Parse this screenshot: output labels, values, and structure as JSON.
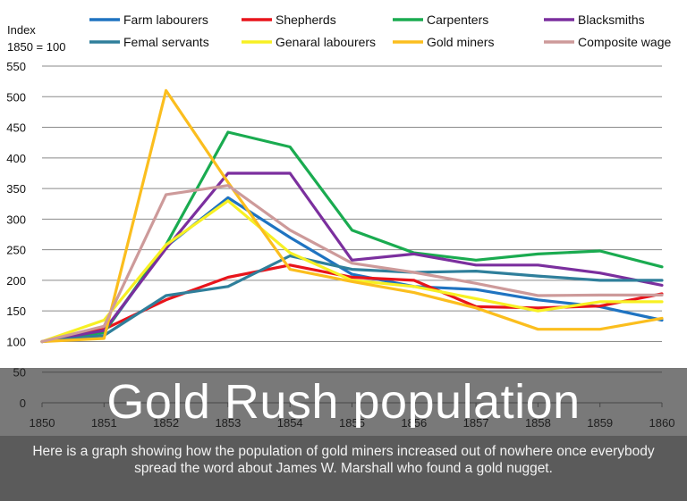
{
  "chart_data": {
    "type": "line",
    "title": "Gold Rush population",
    "ylabel": "Index 1850 = 100",
    "ylabel_lines": [
      "Index",
      "1850 = 100"
    ],
    "xlabel": "",
    "x": [
      1850,
      1851,
      1852,
      1853,
      1854,
      1855,
      1856,
      1857,
      1858,
      1859,
      1860
    ],
    "x_tick_labels": [
      "1850",
      "1851",
      "1852",
      "1853",
      "1854",
      "1855",
      "1856",
      "1857",
      "1858",
      "1859",
      "1860"
    ],
    "ylim": [
      0,
      550
    ],
    "y_ticks": [
      0,
      50,
      100,
      150,
      200,
      250,
      300,
      350,
      400,
      450,
      500,
      550
    ],
    "y_tick_labels": [
      "0",
      "50",
      "100",
      "150",
      "200",
      "250",
      "300",
      "350",
      "400",
      "450",
      "500",
      "550"
    ],
    "grid": true,
    "series": [
      {
        "name": "Farm labourers",
        "color": "#1f73c1",
        "values": [
          100,
          115,
          255,
          335,
          270,
          210,
          190,
          185,
          168,
          157,
          135
        ]
      },
      {
        "name": "Shepherds",
        "color": "#e8141b",
        "values": [
          100,
          120,
          168,
          205,
          225,
          205,
          200,
          157,
          155,
          158,
          178
        ]
      },
      {
        "name": "Carpenters",
        "color": "#1aab50",
        "values": [
          100,
          115,
          258,
          442,
          418,
          282,
          245,
          233,
          243,
          248,
          222
        ]
      },
      {
        "name": "Blacksmiths",
        "color": "#7b2f9e",
        "values": [
          100,
          118,
          252,
          375,
          375,
          233,
          243,
          225,
          225,
          212,
          192
        ]
      },
      {
        "name": "Femal servants",
        "color": "#2f7f9b",
        "values": [
          100,
          110,
          175,
          190,
          240,
          218,
          213,
          215,
          207,
          200,
          200
        ]
      },
      {
        "name": "Genaral labourers",
        "color": "#f7f023",
        "values": [
          100,
          135,
          258,
          330,
          245,
          200,
          190,
          170,
          150,
          165,
          165
        ]
      },
      {
        "name": "Gold miners",
        "color": "#fbbe1e",
        "values": [
          100,
          105,
          510,
          360,
          218,
          198,
          180,
          155,
          120,
          120,
          138
        ]
      },
      {
        "name": "Composite wage",
        "color": "#cd9a9a",
        "values": [
          100,
          125,
          340,
          355,
          282,
          228,
          213,
          195,
          175,
          176,
          176
        ]
      }
    ]
  },
  "caption": {
    "headline": "Gold Rush population",
    "text": "Here is a graph showing how the population of gold miners increased out of nowhere once everybody spread the word about James W. Marshall who found a gold nugget."
  }
}
